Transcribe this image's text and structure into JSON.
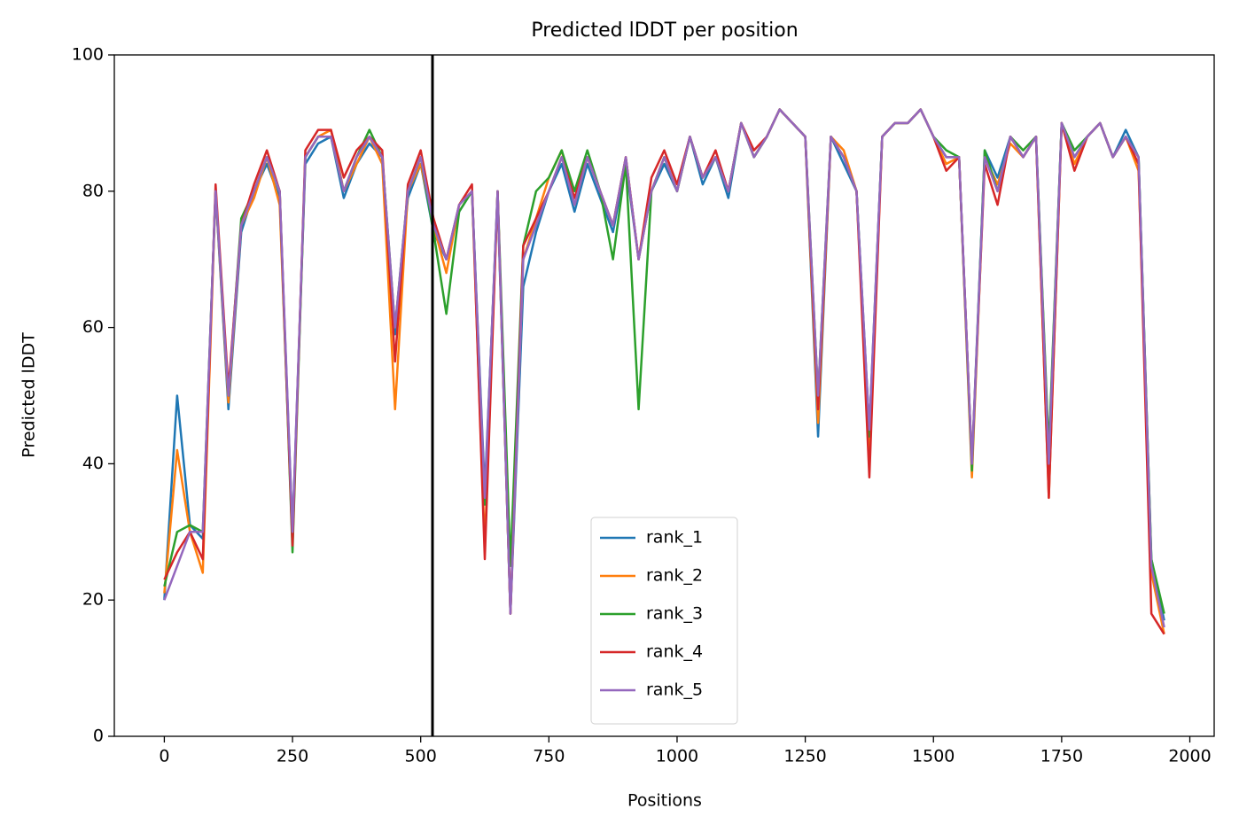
{
  "chart_data": {
    "type": "line",
    "title": "Predicted lDDT per position",
    "x_label": "Positions",
    "y_label": "Predicted lDDT",
    "x": [
      0,
      25,
      50,
      75,
      100,
      125,
      150,
      175,
      200,
      225,
      250,
      275,
      300,
      325,
      350,
      375,
      400,
      425,
      450,
      475,
      500,
      525,
      550,
      575,
      600,
      625,
      650,
      675,
      700,
      725,
      750,
      775,
      800,
      825,
      850,
      875,
      900,
      925,
      950,
      975,
      1000,
      1025,
      1050,
      1075,
      1100,
      1125,
      1150,
      1175,
      1200,
      1225,
      1250,
      1275,
      1300,
      1325,
      1350,
      1375,
      1400,
      1425,
      1450,
      1475,
      1500,
      1525,
      1550,
      1575,
      1600,
      1625,
      1650,
      1675,
      1700,
      1725,
      1750,
      1775,
      1800,
      1825,
      1850,
      1875,
      1900,
      1925,
      1950
    ],
    "series": [
      {
        "name": "rank_1",
        "color": "#1f77b4",
        "values": [
          20,
          50,
          31,
          29,
          80,
          48,
          74,
          80,
          84,
          79,
          30,
          84,
          87,
          88,
          79,
          84,
          87,
          85,
          59,
          79,
          84,
          74,
          70,
          77,
          80,
          36,
          79,
          18,
          66,
          74,
          80,
          84,
          77,
          84,
          79,
          74,
          84,
          70,
          80,
          84,
          80,
          88,
          81,
          85,
          79,
          90,
          85,
          88,
          92,
          90,
          88,
          44,
          88,
          84,
          80,
          45,
          88,
          90,
          90,
          92,
          88,
          85,
          85,
          40,
          86,
          82,
          88,
          85,
          88,
          41,
          90,
          85,
          88,
          90,
          85,
          89,
          85,
          26,
          17
        ]
      },
      {
        "name": "rank_2",
        "color": "#ff7f0e",
        "values": [
          21,
          42,
          30,
          24,
          80,
          49,
          75,
          79,
          85,
          78,
          29,
          85,
          88,
          89,
          80,
          84,
          88,
          84,
          48,
          80,
          84,
          75,
          68,
          78,
          80,
          28,
          80,
          18,
          70,
          76,
          82,
          86,
          78,
          85,
          80,
          75,
          85,
          70,
          80,
          85,
          80,
          88,
          82,
          85,
          80,
          90,
          85,
          88,
          92,
          90,
          88,
          46,
          88,
          86,
          80,
          42,
          88,
          90,
          90,
          92,
          88,
          84,
          85,
          38,
          85,
          81,
          87,
          85,
          88,
          35,
          90,
          84,
          88,
          90,
          85,
          88,
          83,
          24,
          15
        ]
      },
      {
        "name": "rank_3",
        "color": "#2ca02c",
        "values": [
          22,
          30,
          31,
          30,
          80,
          50,
          76,
          80,
          85,
          80,
          27,
          85,
          88,
          88,
          80,
          85,
          89,
          85,
          60,
          80,
          85,
          74,
          62,
          77,
          80,
          34,
          80,
          25,
          72,
          80,
          82,
          86,
          80,
          86,
          80,
          70,
          84,
          48,
          80,
          85,
          80,
          88,
          82,
          85,
          80,
          90,
          85,
          88,
          92,
          90,
          88,
          50,
          88,
          85,
          80,
          44,
          88,
          90,
          90,
          92,
          88,
          86,
          85,
          39,
          86,
          80,
          88,
          86,
          88,
          42,
          90,
          86,
          88,
          90,
          85,
          88,
          85,
          26,
          18
        ]
      },
      {
        "name": "rank_4",
        "color": "#d62728",
        "values": [
          23,
          27,
          30,
          26,
          81,
          51,
          75,
          81,
          86,
          80,
          28,
          86,
          89,
          89,
          82,
          86,
          88,
          86,
          55,
          81,
          86,
          76,
          70,
          78,
          81,
          26,
          80,
          18,
          72,
          76,
          80,
          85,
          79,
          85,
          80,
          75,
          85,
          70,
          82,
          86,
          81,
          88,
          82,
          86,
          80,
          90,
          86,
          88,
          92,
          90,
          88,
          48,
          88,
          85,
          80,
          38,
          88,
          90,
          90,
          92,
          88,
          83,
          85,
          40,
          84,
          78,
          88,
          85,
          88,
          35,
          90,
          83,
          88,
          90,
          85,
          88,
          84,
          18,
          15
        ]
      },
      {
        "name": "rank_5",
        "color": "#9467bd",
        "values": [
          20,
          25,
          30,
          30,
          80,
          50,
          75,
          80,
          85,
          80,
          30,
          85,
          88,
          88,
          80,
          85,
          88,
          85,
          60,
          80,
          85,
          75,
          70,
          78,
          80,
          35,
          80,
          18,
          70,
          75,
          80,
          85,
          78,
          85,
          80,
          75,
          85,
          70,
          80,
          85,
          80,
          88,
          82,
          85,
          80,
          90,
          85,
          88,
          92,
          90,
          88,
          50,
          88,
          85,
          80,
          45,
          88,
          90,
          90,
          92,
          88,
          85,
          85,
          40,
          85,
          80,
          88,
          85,
          88,
          40,
          90,
          85,
          88,
          90,
          85,
          88,
          85,
          25,
          16
        ]
      }
    ],
    "vline_x": 523,
    "vline_color": "#000000",
    "xlim": [
      -97.5,
      2047.5
    ],
    "xticks": [
      0,
      250,
      500,
      750,
      1000,
      1250,
      1500,
      1750,
      2000
    ],
    "ylim": [
      0,
      100
    ],
    "yticks": [
      0,
      20,
      40,
      60,
      80,
      100
    ],
    "legend": "lower center",
    "grid": false
  }
}
